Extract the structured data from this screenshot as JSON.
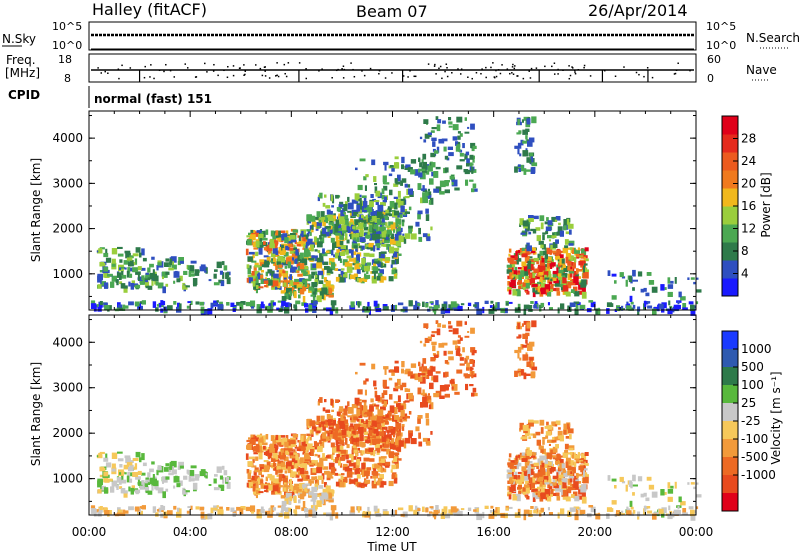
{
  "header": {
    "station": "Halley (fitACF)",
    "beam": "Beam 07",
    "date": "26/Apr/2014"
  },
  "top_panels": {
    "nsky_label": "N.Sky",
    "nsearch_label": "N.Search",
    "nsky_ticks": [
      "10^5",
      "10^0"
    ],
    "nsearch_ticks": [
      "10^5",
      "10^0"
    ],
    "freq_label_1": "Freq.",
    "freq_label_2": "[MHz]",
    "freq_ticks": [
      "18",
      "8"
    ],
    "nave_label": "Nave",
    "nave_ticks": [
      "60",
      "0"
    ],
    "cpid_label": "CPID",
    "cpid_value": "normal (fast) 151"
  },
  "x_axis": {
    "label": "Time UT",
    "ticks": [
      "00:00",
      "04:00",
      "08:00",
      "12:00",
      "16:00",
      "20:00",
      "00:00"
    ]
  },
  "chart_data": [
    {
      "type": "heatmap",
      "name": "power",
      "ylabel": "Slant Range [km]",
      "yticks": [
        "1000",
        "2000",
        "3000",
        "4000"
      ],
      "ylim": [
        200,
        4600
      ],
      "xlim": [
        0,
        24
      ],
      "colorbar_label": "Power [dB]",
      "colorbar_ticks": [
        "4",
        "8",
        "12",
        "16",
        "20",
        "24",
        "28"
      ],
      "colors": [
        "#1a1aff",
        "#2f4fc0",
        "#2e7a4a",
        "#4ba852",
        "#9ace3c",
        "#f1b81c",
        "#f07a1e",
        "#ec5a1e",
        "#e52a1c",
        "#e0001a"
      ]
    },
    {
      "type": "heatmap",
      "name": "velocity",
      "ylabel": "Slant Range [km]",
      "yticks": [
        "1000",
        "2000",
        "3000",
        "4000"
      ],
      "ylim": [
        200,
        4600
      ],
      "xlim": [
        0,
        24
      ],
      "colorbar_label": "Velocity [m s⁻¹]",
      "colorbar_ticks": [
        "1000",
        "500",
        "100",
        "25",
        "-25",
        "-100",
        "-500",
        "-1000"
      ],
      "colors": [
        "#1a3aff",
        "#2f5ab0",
        "#2e7a4a",
        "#58b83c",
        "#c8c8c8",
        "#f6c85a",
        "#f29a3a",
        "#ed6a24",
        "#e84a1e",
        "#e0001a"
      ]
    }
  ]
}
